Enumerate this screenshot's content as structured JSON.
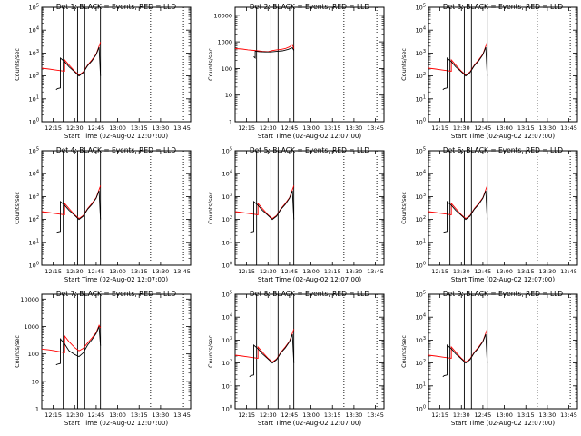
{
  "chart_data": [
    {
      "type": "line",
      "title": "Det 1: BLACK = Events, RED = LLD",
      "xlabel": "Start Time (02-Aug-02 12:07:00)",
      "ylabel": "Counts/sec",
      "xlim": [
        "12:07",
        "13:51"
      ],
      "yscale": "log",
      "ylim": [
        1,
        100000
      ],
      "ytick_labels": [
        "10^0",
        "10^1",
        "10^2",
        "10^3",
        "10^4",
        "10^5"
      ],
      "xtick_labels": [
        "12:15",
        "12:30",
        "12:45",
        "13:00",
        "13:15",
        "13:30",
        "13:45"
      ],
      "solid_vlines": [
        "12:22",
        "12:32",
        "12:37",
        "12:48"
      ],
      "dotted_vlines": [
        "13:23",
        "13:46"
      ],
      "series": [
        {
          "color": "#ff0000",
          "x": [
            "12:07",
            "12:12",
            "12:16",
            "12:20",
            "12:23",
            "12:23",
            "12:26",
            "12:30",
            "12:33",
            "12:36",
            "12:39",
            "12:42",
            "12:45",
            "12:47",
            "12:48"
          ],
          "y": [
            220,
            200,
            185,
            170,
            160,
            500,
            300,
            160,
            110,
            150,
            300,
            500,
            900,
            2000,
            3000
          ]
        },
        {
          "color": "#000000",
          "x": [
            "12:17",
            "12:18",
            "12:20",
            "12:20",
            "12:23",
            "12:26",
            "12:30",
            "12:33",
            "12:36",
            "12:39",
            "12:42",
            "12:45",
            "12:47",
            "12:48"
          ],
          "y": [
            25,
            28,
            30,
            600,
            420,
            250,
            150,
            100,
            140,
            280,
            450,
            850,
            1800,
            100
          ]
        }
      ]
    },
    {
      "type": "line",
      "title": "Det 2: BLACK = Events, RED = LLD",
      "xlabel": "Start Time (02-Aug-02 12:07:00)",
      "ylabel": "Counts/sec",
      "xlim": [
        "12:07",
        "13:51"
      ],
      "yscale": "log",
      "ylim": [
        1,
        20000
      ],
      "ytick_labels": [
        "1",
        "10",
        "100",
        "1000",
        "10000"
      ],
      "xtick_labels": [
        "12:15",
        "12:30",
        "12:45",
        "13:00",
        "13:15",
        "13:30",
        "13:45"
      ],
      "solid_vlines": [
        "12:22",
        "12:32",
        "12:37",
        "12:48"
      ],
      "dotted_vlines": [
        "13:23",
        "13:46"
      ],
      "series": [
        {
          "color": "#ff0000",
          "x": [
            "12:07",
            "12:12",
            "12:16",
            "12:20",
            "12:23",
            "12:26",
            "12:30",
            "12:33",
            "12:36",
            "12:39",
            "12:42",
            "12:45",
            "12:47",
            "12:48"
          ],
          "y": [
            560,
            540,
            500,
            480,
            460,
            440,
            430,
            470,
            500,
            520,
            560,
            650,
            800,
            550
          ]
        },
        {
          "color": "#000000",
          "x": [
            "12:20",
            "12:21",
            "12:21",
            "12:24",
            "12:28",
            "12:32",
            "12:36",
            "12:40",
            "12:44",
            "12:47",
            "12:48"
          ],
          "y": [
            280,
            250,
            450,
            430,
            420,
            420,
            440,
            460,
            520,
            600,
            480
          ]
        }
      ]
    },
    {
      "type": "line",
      "title": "Det 3: BLACK = Events, RED = LLD",
      "xlabel": "Start Time (02-Aug-02 12:07:00)",
      "ylabel": "Counts/sec",
      "xlim": [
        "12:07",
        "13:51"
      ],
      "yscale": "log",
      "ylim": [
        1,
        100000
      ],
      "ytick_labels": [
        "10^0",
        "10^1",
        "10^2",
        "10^3",
        "10^4",
        "10^5"
      ],
      "xtick_labels": [
        "12:15",
        "12:30",
        "12:45",
        "13:00",
        "13:15",
        "13:30",
        "13:45"
      ],
      "solid_vlines": [
        "12:22",
        "12:32",
        "12:37",
        "12:48"
      ],
      "dotted_vlines": [
        "13:23",
        "13:46"
      ],
      "series": [
        {
          "color": "#ff0000",
          "x": [
            "12:07",
            "12:12",
            "12:16",
            "12:20",
            "12:23",
            "12:23",
            "12:26",
            "12:30",
            "12:33",
            "12:36",
            "12:39",
            "12:42",
            "12:45",
            "12:47",
            "12:48"
          ],
          "y": [
            220,
            200,
            185,
            170,
            160,
            500,
            300,
            160,
            110,
            150,
            300,
            500,
            900,
            2000,
            3000
          ]
        },
        {
          "color": "#000000",
          "x": [
            "12:17",
            "12:18",
            "12:20",
            "12:20",
            "12:23",
            "12:26",
            "12:30",
            "12:33",
            "12:36",
            "12:39",
            "12:42",
            "12:45",
            "12:47",
            "12:48"
          ],
          "y": [
            25,
            28,
            30,
            600,
            420,
            250,
            150,
            100,
            140,
            280,
            450,
            850,
            1800,
            100
          ]
        }
      ]
    },
    {
      "type": "line",
      "title": "Det 4: BLACK = Events, RED = LLD",
      "xlabel": "Start Time (02-Aug-02 12:07:00)",
      "ylabel": "Counts/sec",
      "xlim": [
        "12:07",
        "13:51"
      ],
      "yscale": "log",
      "ylim": [
        1,
        100000
      ],
      "ytick_labels": [
        "10^0",
        "10^1",
        "10^2",
        "10^3",
        "10^4",
        "10^5"
      ],
      "xtick_labels": [
        "12:15",
        "12:30",
        "12:45",
        "13:00",
        "13:15",
        "13:30",
        "13:45"
      ],
      "solid_vlines": [
        "12:22",
        "12:32",
        "12:37",
        "12:48"
      ],
      "dotted_vlines": [
        "13:23",
        "13:46"
      ],
      "series": [
        {
          "color": "#ff0000",
          "x": [
            "12:07",
            "12:12",
            "12:16",
            "12:20",
            "12:23",
            "12:23",
            "12:26",
            "12:30",
            "12:33",
            "12:36",
            "12:39",
            "12:42",
            "12:45",
            "12:47",
            "12:48"
          ],
          "y": [
            220,
            200,
            185,
            170,
            160,
            500,
            300,
            160,
            110,
            150,
            300,
            500,
            900,
            2000,
            3000
          ]
        },
        {
          "color": "#000000",
          "x": [
            "12:17",
            "12:18",
            "12:20",
            "12:20",
            "12:23",
            "12:26",
            "12:30",
            "12:33",
            "12:36",
            "12:39",
            "12:42",
            "12:45",
            "12:47",
            "12:48"
          ],
          "y": [
            25,
            28,
            30,
            600,
            420,
            250,
            150,
            100,
            140,
            280,
            450,
            850,
            1800,
            100
          ]
        }
      ]
    },
    {
      "type": "line",
      "title": "Det 5: BLACK = Events, RED = LLD",
      "xlabel": "Start Time (02-Aug-02 12:07:00)",
      "ylabel": "Counts/sec",
      "xlim": [
        "12:07",
        "13:51"
      ],
      "yscale": "log",
      "ylim": [
        1,
        100000
      ],
      "ytick_labels": [
        "10^0",
        "10^1",
        "10^2",
        "10^3",
        "10^4",
        "10^5"
      ],
      "xtick_labels": [
        "12:15",
        "12:30",
        "12:45",
        "13:00",
        "13:15",
        "13:30",
        "13:45"
      ],
      "solid_vlines": [
        "12:22",
        "12:32",
        "12:37",
        "12:48"
      ],
      "dotted_vlines": [
        "13:23",
        "13:46"
      ],
      "series": [
        {
          "color": "#ff0000",
          "x": [
            "12:07",
            "12:12",
            "12:16",
            "12:20",
            "12:23",
            "12:23",
            "12:26",
            "12:30",
            "12:33",
            "12:36",
            "12:39",
            "12:42",
            "12:45",
            "12:47",
            "12:48"
          ],
          "y": [
            220,
            200,
            185,
            170,
            160,
            500,
            300,
            160,
            110,
            150,
            300,
            500,
            900,
            2000,
            3000
          ]
        },
        {
          "color": "#000000",
          "x": [
            "12:17",
            "12:18",
            "12:20",
            "12:20",
            "12:23",
            "12:26",
            "12:30",
            "12:33",
            "12:36",
            "12:39",
            "12:42",
            "12:45",
            "12:47",
            "12:48"
          ],
          "y": [
            25,
            28,
            30,
            600,
            420,
            250,
            150,
            100,
            140,
            280,
            450,
            850,
            1800,
            100
          ]
        }
      ]
    },
    {
      "type": "line",
      "title": "Det 6: BLACK = Events, RED = LLD",
      "xlabel": "Start Time (02-Aug-02 12:07:00)",
      "ylabel": "Counts/sec",
      "xlim": [
        "12:07",
        "13:51"
      ],
      "yscale": "log",
      "ylim": [
        1,
        100000
      ],
      "ytick_labels": [
        "10^0",
        "10^1",
        "10^2",
        "10^3",
        "10^4",
        "10^5"
      ],
      "xtick_labels": [
        "12:15",
        "12:30",
        "12:45",
        "13:00",
        "13:15",
        "13:30",
        "13:45"
      ],
      "solid_vlines": [
        "12:22",
        "12:32",
        "12:37",
        "12:48"
      ],
      "dotted_vlines": [
        "13:23",
        "13:46"
      ],
      "series": [
        {
          "color": "#ff0000",
          "x": [
            "12:07",
            "12:12",
            "12:16",
            "12:20",
            "12:23",
            "12:23",
            "12:26",
            "12:30",
            "12:33",
            "12:36",
            "12:39",
            "12:42",
            "12:45",
            "12:47",
            "12:48"
          ],
          "y": [
            220,
            200,
            185,
            170,
            160,
            500,
            300,
            160,
            110,
            150,
            300,
            500,
            900,
            2000,
            3000
          ]
        },
        {
          "color": "#000000",
          "x": [
            "12:17",
            "12:18",
            "12:20",
            "12:20",
            "12:23",
            "12:26",
            "12:30",
            "12:33",
            "12:36",
            "12:39",
            "12:42",
            "12:45",
            "12:47",
            "12:48"
          ],
          "y": [
            25,
            28,
            30,
            600,
            420,
            250,
            150,
            100,
            140,
            280,
            450,
            850,
            1800,
            100
          ]
        }
      ]
    },
    {
      "type": "line",
      "title": "Det 7: BLACK = Events, RED = LLD",
      "xlabel": "Start Time (02-Aug-02 12:07:00)",
      "ylabel": "Counts/sec",
      "xlim": [
        "12:07",
        "13:51"
      ],
      "yscale": "log",
      "ylim": [
        1,
        15000
      ],
      "ytick_labels": [
        "1",
        "10",
        "100",
        "1000",
        "10000"
      ],
      "xtick_labels": [
        "12:15",
        "12:30",
        "12:45",
        "13:00",
        "13:15",
        "13:30",
        "13:45"
      ],
      "solid_vlines": [
        "12:22",
        "12:32",
        "12:37",
        "12:48"
      ],
      "dotted_vlines": [
        "13:23",
        "13:46"
      ],
      "series": [
        {
          "color": "#ff0000",
          "x": [
            "12:07",
            "12:12",
            "12:16",
            "12:20",
            "12:23",
            "12:23",
            "12:26",
            "12:30",
            "12:33",
            "12:36",
            "12:39",
            "12:42",
            "12:45",
            "12:47",
            "12:48"
          ],
          "y": [
            150,
            140,
            130,
            120,
            110,
            450,
            280,
            170,
            130,
            160,
            250,
            380,
            600,
            1100,
            900
          ]
        },
        {
          "color": "#000000",
          "x": [
            "12:17",
            "12:18",
            "12:20",
            "12:20",
            "12:23",
            "12:26",
            "12:30",
            "12:33",
            "12:36",
            "12:39",
            "12:42",
            "12:45",
            "12:47",
            "12:48"
          ],
          "y": [
            40,
            42,
            45,
            350,
            230,
            130,
            95,
            80,
            110,
            210,
            330,
            560,
            1000,
            200
          ]
        }
      ]
    },
    {
      "type": "line",
      "title": "Det 8: BLACK = Events, RED = LLD",
      "xlabel": "Start Time (02-Aug-02 12:07:00)",
      "ylabel": "Counts/sec",
      "xlim": [
        "12:07",
        "13:51"
      ],
      "yscale": "log",
      "ylim": [
        1,
        100000
      ],
      "ytick_labels": [
        "10^0",
        "10^1",
        "10^2",
        "10^3",
        "10^4",
        "10^5"
      ],
      "xtick_labels": [
        "12:15",
        "12:30",
        "12:45",
        "13:00",
        "13:15",
        "13:30",
        "13:45"
      ],
      "solid_vlines": [
        "12:22",
        "12:32",
        "12:37",
        "12:48"
      ],
      "dotted_vlines": [
        "13:23",
        "13:46"
      ],
      "series": [
        {
          "color": "#ff0000",
          "x": [
            "12:07",
            "12:12",
            "12:16",
            "12:20",
            "12:23",
            "12:23",
            "12:26",
            "12:30",
            "12:33",
            "12:36",
            "12:39",
            "12:42",
            "12:45",
            "12:47",
            "12:48"
          ],
          "y": [
            220,
            200,
            185,
            170,
            160,
            500,
            300,
            160,
            110,
            150,
            300,
            500,
            900,
            2000,
            3000
          ]
        },
        {
          "color": "#000000",
          "x": [
            "12:17",
            "12:18",
            "12:20",
            "12:20",
            "12:23",
            "12:26",
            "12:30",
            "12:33",
            "12:36",
            "12:39",
            "12:42",
            "12:45",
            "12:47",
            "12:48"
          ],
          "y": [
            25,
            28,
            30,
            600,
            420,
            250,
            150,
            100,
            140,
            280,
            450,
            850,
            1800,
            100
          ]
        }
      ]
    },
    {
      "type": "line",
      "title": "Det 9: BLACK = Events, RED = LLD",
      "xlabel": "Start Time (02-Aug-02 12:07:00)",
      "ylabel": "Counts/sec",
      "xlim": [
        "12:07",
        "13:51"
      ],
      "yscale": "log",
      "ylim": [
        1,
        100000
      ],
      "ytick_labels": [
        "10^0",
        "10^1",
        "10^2",
        "10^3",
        "10^4",
        "10^5"
      ],
      "xtick_labels": [
        "12:15",
        "12:30",
        "12:45",
        "13:00",
        "13:15",
        "13:30",
        "13:45"
      ],
      "solid_vlines": [
        "12:22",
        "12:32",
        "12:37",
        "12:48"
      ],
      "dotted_vlines": [
        "13:23",
        "13:46"
      ],
      "series": [
        {
          "color": "#ff0000",
          "x": [
            "12:07",
            "12:12",
            "12:16",
            "12:20",
            "12:23",
            "12:23",
            "12:26",
            "12:30",
            "12:33",
            "12:36",
            "12:39",
            "12:42",
            "12:45",
            "12:47",
            "12:48"
          ],
          "y": [
            220,
            200,
            185,
            170,
            160,
            500,
            300,
            160,
            110,
            150,
            300,
            500,
            900,
            2000,
            3000
          ]
        },
        {
          "color": "#000000",
          "x": [
            "12:17",
            "12:18",
            "12:20",
            "12:20",
            "12:23",
            "12:26",
            "12:30",
            "12:33",
            "12:36",
            "12:39",
            "12:42",
            "12:45",
            "12:47",
            "12:48"
          ],
          "y": [
            25,
            28,
            30,
            600,
            420,
            250,
            150,
            100,
            140,
            280,
            450,
            850,
            1800,
            100
          ]
        }
      ]
    }
  ]
}
